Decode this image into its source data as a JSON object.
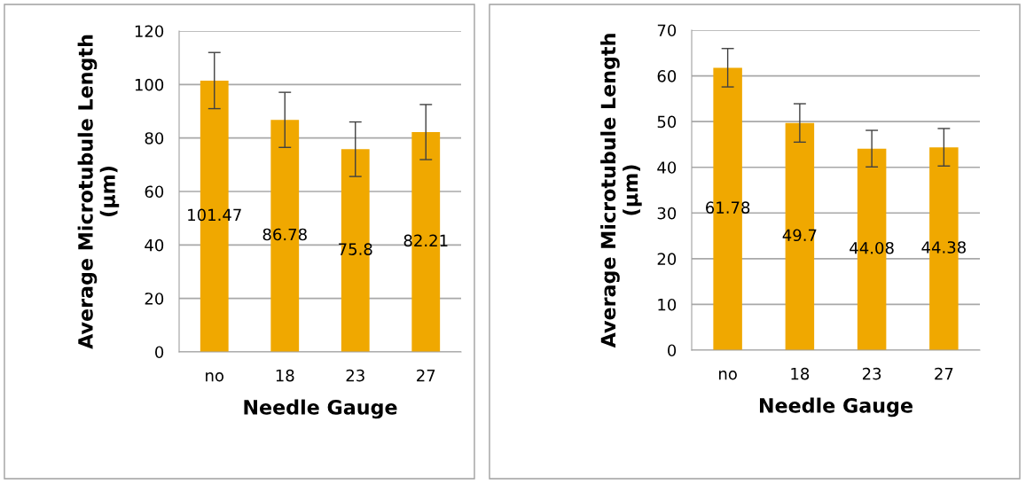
{
  "chart_data": [
    {
      "type": "bar",
      "xlabel": "Needle Gauge",
      "ylabel": "Average Microtubule Length\n(µm)",
      "categories": [
        "no",
        "18",
        "23",
        "27"
      ],
      "values": [
        101.47,
        86.78,
        75.8,
        82.21
      ],
      "errors": [
        10.5,
        10.3,
        10.2,
        10.3
      ],
      "color": "#f0a800",
      "ylim": [
        0,
        120
      ],
      "yticks": [
        0,
        20,
        40,
        60,
        80,
        100,
        120
      ],
      "grid": "y",
      "data_labels": true
    },
    {
      "type": "bar",
      "xlabel": "Needle Gauge",
      "ylabel": "Average Microtubule Length\n(µm)",
      "categories": [
        "no",
        "18",
        "23",
        "27"
      ],
      "values": [
        61.78,
        49.7,
        44.08,
        44.38
      ],
      "errors": [
        4.2,
        4.2,
        4.0,
        4.1
      ],
      "color": "#f0a800",
      "ylim": [
        0,
        70
      ],
      "yticks": [
        0,
        10,
        20,
        30,
        40,
        50,
        60,
        70
      ],
      "grid": "y",
      "data_labels": true
    }
  ]
}
